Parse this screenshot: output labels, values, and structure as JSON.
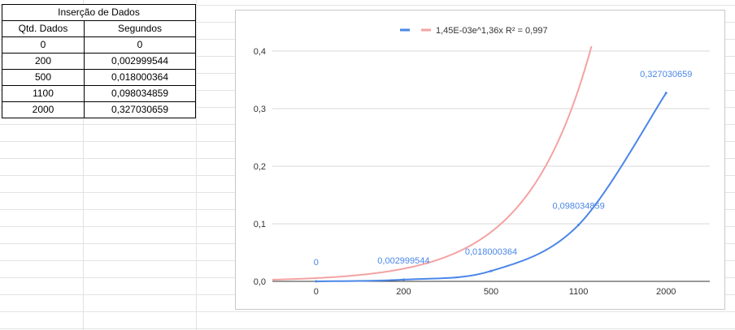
{
  "table": {
    "title": "Inserção de Dados",
    "headers": [
      "Qtd. Dados",
      "Segundos"
    ],
    "rows": [
      [
        "0",
        "0"
      ],
      [
        "200",
        "0,002999544"
      ],
      [
        "500",
        "0,018000364"
      ],
      [
        "1100",
        "0,098034859"
      ],
      [
        "2000",
        "0,327030659"
      ]
    ]
  },
  "chart_data": {
    "type": "line",
    "categories": [
      "0",
      "200",
      "500",
      "1100",
      "2000"
    ],
    "series": [
      {
        "values": [
          0,
          0.002999544,
          0.018000364,
          0.098034859,
          0.327030659
        ],
        "color": "#4a86e8",
        "data_labels": [
          "0",
          "0,002999544",
          "0,018000364",
          "0,098034859",
          "0,327030659"
        ]
      }
    ],
    "trendline": {
      "type": "exponential",
      "label": "1,45E-03e^1,36x R² = 0,997",
      "a": 0.00145,
      "b": 1.36,
      "color": "#f4a2a2"
    },
    "ylim": [
      0,
      0.4
    ],
    "yticks": [
      "0,0",
      "0,1",
      "0,2",
      "0,3",
      "0,4"
    ],
    "grid": true,
    "legend": "top"
  }
}
